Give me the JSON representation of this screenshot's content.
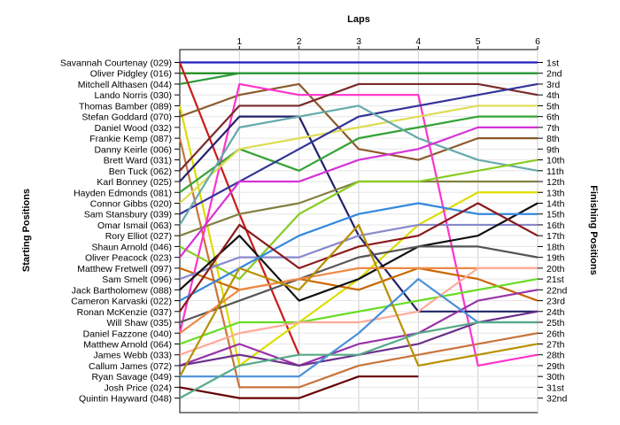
{
  "chart_data": {
    "type": "line",
    "title": "Laps",
    "ylabel_left": "Starting Positions",
    "ylabel_right": "Finishing Positions",
    "laps": [
      0,
      1,
      2,
      3,
      4,
      5,
      6
    ],
    "lap_tick_labels": [
      "1",
      "2",
      "3",
      "4",
      "5",
      "6"
    ],
    "grid": true,
    "finishing_labels": [
      "1st",
      "2nd",
      "3rd",
      "4th",
      "5th",
      "6th",
      "7th",
      "8th",
      "9th",
      "10th",
      "11th",
      "12th",
      "13th",
      "14th",
      "15th",
      "16th",
      "17th",
      "18th",
      "19th",
      "20th",
      "21st",
      "22nd",
      "23rd",
      "24th",
      "25th",
      "26th",
      "27th",
      "28th",
      "29th",
      "30th",
      "31st",
      "32nd"
    ],
    "series": [
      {
        "name": "Savannah Courtenay (029)",
        "color": "#1f1fbf",
        "positions": [
          1,
          1,
          1,
          1,
          1,
          1,
          1
        ]
      },
      {
        "name": "Oliver Pidgley (016)",
        "color": "#1b8c1b",
        "positions": [
          2,
          2,
          2,
          2,
          2,
          2,
          2
        ]
      },
      {
        "name": "Mitchell Althasen (044)",
        "color": "#2a9a3a",
        "positions": [
          3,
          2,
          2,
          2,
          2,
          2,
          2
        ]
      },
      {
        "name": "Lando Norris (030)",
        "color": "#cc1a1a",
        "positions": [
          1,
          15,
          28
        ]
      },
      {
        "name": "Thomas Bamber (089)",
        "color": "#dddd00",
        "positions": [
          5,
          29,
          25,
          21,
          16,
          13,
          13
        ]
      },
      {
        "name": "Stefan Goddard (070)",
        "color": "#c8743a",
        "positions": [
          8,
          31,
          31,
          29,
          28,
          27,
          26
        ]
      },
      {
        "name": "Daniel Wood (032)",
        "color": "#8b5a2b",
        "positions": [
          6,
          4,
          3,
          9,
          10,
          8,
          8
        ]
      },
      {
        "name": "Frankie Kemp (087)",
        "color": "#ff33cc",
        "positions": [
          26,
          3,
          4,
          4,
          4,
          29,
          28
        ]
      },
      {
        "name": "Danny Keirle (006)",
        "color": "#7a2a2a",
        "positions": [
          11,
          5,
          5,
          3,
          3,
          3,
          4
        ]
      },
      {
        "name": "Brett Ward (031)",
        "color": "#22226b",
        "positions": [
          12,
          6,
          6,
          17,
          24,
          24,
          24
        ]
      },
      {
        "name": "Ben Tuck (062)",
        "color": "#33a333",
        "positions": [
          13,
          9,
          11,
          8,
          7,
          6,
          6
        ]
      },
      {
        "name": "Karl Bonney (025)",
        "color": "#dddd55",
        "positions": [
          14,
          9,
          8,
          7,
          6,
          5,
          5
        ]
      },
      {
        "name": "Hayden Edmonds (081)",
        "color": "#333399",
        "positions": [
          15,
          12,
          9,
          6,
          5,
          4,
          3
        ]
      },
      {
        "name": "Connor Gibbs (020)",
        "color": "#66aaaa",
        "positions": [
          16,
          7,
          6,
          5,
          8,
          10,
          11
        ]
      },
      {
        "name": "Sam Stansbury (039)",
        "color": "#808040",
        "positions": [
          17,
          15,
          14,
          12,
          12,
          12,
          12
        ]
      },
      {
        "name": "Omar Ismail (063)",
        "color": "#88cc22",
        "positions": [
          18,
          21,
          15,
          12,
          12,
          11,
          10
        ]
      },
      {
        "name": "Rory Elliot (027)",
        "color": "#d633d6",
        "positions": [
          19,
          12,
          12,
          10,
          9,
          7,
          7
        ]
      },
      {
        "name": "Shaun Arnold (046)",
        "color": "#cc6600",
        "positions": [
          20,
          22,
          21,
          22,
          20,
          21,
          23
        ]
      },
      {
        "name": "Oliver Peacock (023)",
        "color": "#8888cc",
        "positions": [
          21,
          19,
          19,
          17,
          16,
          16,
          16
        ]
      },
      {
        "name": "Matthew Fretwell (097)",
        "color": "#111111",
        "positions": [
          22,
          17,
          23,
          21,
          18,
          17,
          14
        ]
      },
      {
        "name": "Sam Smelt (096)",
        "color": "#3388dd",
        "positions": [
          23,
          20,
          17,
          15,
          14,
          15,
          15
        ]
      },
      {
        "name": "Jack Bartholomew (088)",
        "color": "#8b1a1a",
        "positions": [
          24,
          16,
          20,
          18,
          17,
          14,
          17
        ]
      },
      {
        "name": "Cameron Karvaski (022)",
        "color": "#555555",
        "positions": [
          25,
          23,
          21,
          19,
          18,
          18,
          19
        ]
      },
      {
        "name": "Ronan McKenzie (037)",
        "color": "#ee8844",
        "positions": [
          26,
          22,
          21,
          20,
          20,
          20,
          20
        ]
      },
      {
        "name": "Will Shaw (035)",
        "color": "#66dd22",
        "positions": [
          27,
          25,
          25,
          24,
          23,
          22,
          21
        ]
      },
      {
        "name": "Daniel Fazzone (040)",
        "color": "#ffaa99",
        "positions": [
          28,
          26,
          25,
          25,
          24,
          20,
          20
        ]
      },
      {
        "name": "Matthew Arnold (064)",
        "color": "#9933aa",
        "positions": [
          29,
          27,
          29,
          27,
          26,
          23,
          22
        ]
      },
      {
        "name": "James Webb (033)",
        "color": "#6b2f8b",
        "positions": [
          29,
          28,
          29,
          28,
          27,
          25,
          24
        ]
      },
      {
        "name": "Callum James (072)",
        "color": "#b89000",
        "positions": [
          30,
          20,
          22,
          16,
          29,
          28,
          27
        ]
      },
      {
        "name": "Ryan Savage (049)",
        "color": "#4a90d9",
        "positions": [
          30,
          30,
          30,
          26,
          21,
          25,
          25
        ]
      },
      {
        "name": "Josh Price (024)",
        "color": "#660000",
        "positions": [
          31,
          32,
          32,
          30,
          30
        ]
      },
      {
        "name": "Quintin Hayward (048)",
        "color": "#55aa88",
        "positions": [
          32,
          29,
          28,
          28,
          26,
          25,
          25
        ]
      }
    ]
  }
}
